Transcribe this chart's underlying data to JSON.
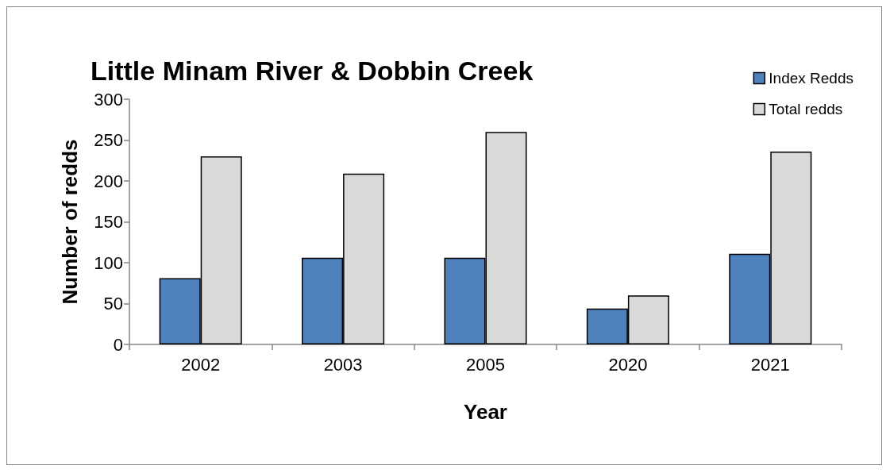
{
  "chart_data": {
    "type": "bar",
    "title": "Little Minam River & Dobbin Creek",
    "xlabel": "Year",
    "ylabel": "Number of redds",
    "categories": [
      "2002",
      "2003",
      "2005",
      "2020",
      "2021"
    ],
    "series": [
      {
        "name": "Index Redds",
        "color": "#4f81bd",
        "values": [
          81,
          106,
          106,
          44,
          111
        ]
      },
      {
        "name": "Total redds",
        "color": "#d9d9d9",
        "values": [
          230,
          209,
          260,
          60,
          236
        ]
      }
    ],
    "ylim": [
      0,
      300
    ],
    "yticks": [
      0,
      50,
      100,
      150,
      200,
      250,
      300
    ],
    "grid": false,
    "legend": "top right"
  }
}
